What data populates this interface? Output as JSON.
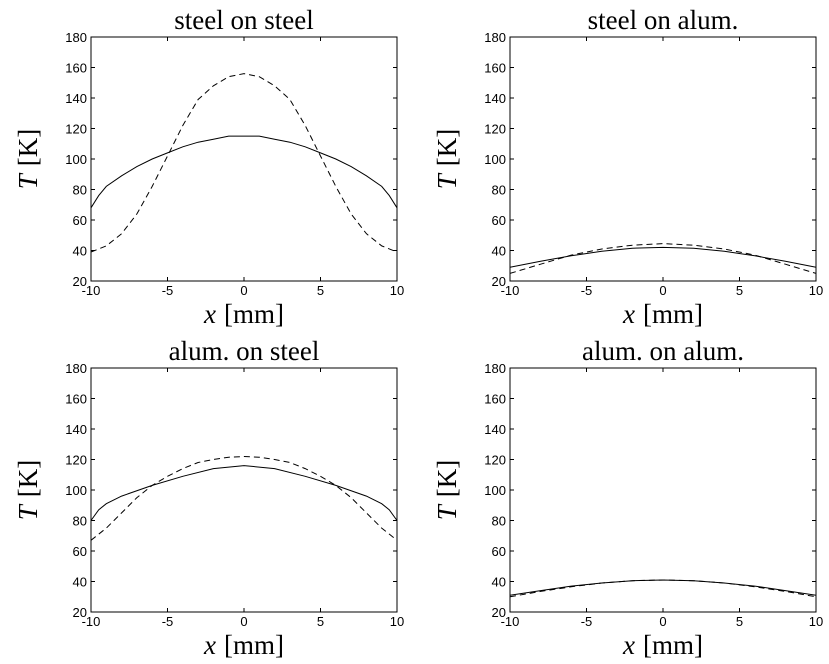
{
  "chart_data": [
    {
      "type": "line",
      "title": "steel on steel",
      "xlabel_var": "x",
      "xlabel_unit": "[mm]",
      "ylabel_var": "T",
      "ylabel_unit": "[K]",
      "xlim": [
        -10,
        10
      ],
      "ylim": [
        20,
        180
      ],
      "xticks": [
        -10,
        -5,
        0,
        5,
        10
      ],
      "yticks": [
        20,
        40,
        60,
        80,
        100,
        120,
        140,
        160,
        180
      ],
      "grid": false,
      "series": [
        {
          "style": "solid",
          "x": [
            -10,
            -9.5,
            -9,
            -8,
            -7,
            -6,
            -5,
            -4,
            -3,
            -2,
            -1,
            0,
            1,
            2,
            3,
            4,
            5,
            6,
            7,
            8,
            9,
            9.5,
            10
          ],
          "y": [
            68,
            76,
            82,
            89,
            95,
            100,
            104,
            108,
            111,
            113,
            115,
            115,
            115,
            113,
            111,
            108,
            104,
            100,
            95,
            89,
            82,
            76,
            68
          ]
        },
        {
          "style": "dashed",
          "x": [
            -10,
            -9,
            -8,
            -7,
            -6,
            -5,
            -4,
            -3,
            -2,
            -1,
            0,
            1,
            2,
            3,
            4,
            5,
            6,
            7,
            8,
            9,
            10
          ],
          "y": [
            39,
            43,
            51,
            64,
            82,
            102,
            122,
            139,
            148,
            154,
            156,
            154,
            148,
            139,
            122,
            102,
            82,
            64,
            51,
            43,
            39
          ]
        }
      ]
    },
    {
      "type": "line",
      "title": "steel on alum.",
      "xlabel_var": "x",
      "xlabel_unit": "[mm]",
      "ylabel_var": "T",
      "ylabel_unit": "[K]",
      "xlim": [
        -10,
        10
      ],
      "ylim": [
        20,
        180
      ],
      "xticks": [
        -10,
        -5,
        0,
        5,
        10
      ],
      "yticks": [
        20,
        40,
        60,
        80,
        100,
        120,
        140,
        160,
        180
      ],
      "grid": false,
      "series": [
        {
          "style": "solid",
          "x": [
            -10,
            -8,
            -6,
            -4,
            -2,
            0,
            2,
            4,
            6,
            8,
            10
          ],
          "y": [
            29,
            33,
            36.5,
            39.5,
            41.5,
            42,
            41.5,
            39.5,
            36.5,
            33,
            29
          ]
        },
        {
          "style": "dashed",
          "x": [
            -10,
            -8,
            -6,
            -4,
            -2,
            0,
            2,
            4,
            6,
            8,
            10
          ],
          "y": [
            25,
            31,
            37,
            41,
            43.5,
            44.5,
            43.5,
            41,
            37,
            31,
            25
          ]
        }
      ]
    },
    {
      "type": "line",
      "title": "alum. on steel",
      "xlabel_var": "x",
      "xlabel_unit": "[mm]",
      "ylabel_var": "T",
      "ylabel_unit": "[K]",
      "xlim": [
        -10,
        10
      ],
      "ylim": [
        20,
        180
      ],
      "xticks": [
        -10,
        -5,
        0,
        5,
        10
      ],
      "yticks": [
        20,
        40,
        60,
        80,
        100,
        120,
        140,
        160,
        180
      ],
      "grid": false,
      "series": [
        {
          "style": "solid",
          "x": [
            -10,
            -9.5,
            -9,
            -8,
            -6,
            -4,
            -2,
            0,
            2,
            4,
            6,
            8,
            9,
            9.5,
            10
          ],
          "y": [
            80,
            87,
            91,
            96,
            103,
            109,
            114,
            116,
            114,
            109,
            103,
            96,
            91,
            87,
            80
          ]
        },
        {
          "style": "dashed",
          "x": [
            -10,
            -9,
            -8,
            -7,
            -6,
            -5,
            -4,
            -3,
            -2,
            -1,
            0,
            1,
            2,
            3,
            4,
            5,
            6,
            7,
            8,
            9,
            10
          ],
          "y": [
            67,
            75,
            85,
            95,
            103,
            109,
            114,
            118,
            120,
            121.5,
            122,
            121.5,
            120,
            118,
            114,
            109,
            103,
            95,
            85,
            75,
            67
          ]
        }
      ]
    },
    {
      "type": "line",
      "title": "alum. on alum.",
      "xlabel_var": "x",
      "xlabel_unit": "[mm]",
      "ylabel_var": "T",
      "ylabel_unit": "[K]",
      "xlim": [
        -10,
        10
      ],
      "ylim": [
        20,
        180
      ],
      "xticks": [
        -10,
        -5,
        0,
        5,
        10
      ],
      "yticks": [
        20,
        40,
        60,
        80,
        100,
        120,
        140,
        160,
        180
      ],
      "grid": false,
      "series": [
        {
          "style": "solid",
          "x": [
            -10,
            -8,
            -6,
            -4,
            -2,
            0,
            2,
            4,
            6,
            8,
            10
          ],
          "y": [
            31,
            34,
            37,
            39,
            40.5,
            41,
            40.5,
            39,
            37,
            34,
            31
          ]
        },
        {
          "style": "dashed",
          "x": [
            -10,
            -8,
            -6,
            -4,
            -2,
            0,
            2,
            4,
            6,
            8,
            10
          ],
          "y": [
            30,
            33.5,
            36.5,
            39,
            40.5,
            41,
            40.5,
            39,
            36.5,
            33.5,
            30
          ]
        }
      ]
    }
  ]
}
